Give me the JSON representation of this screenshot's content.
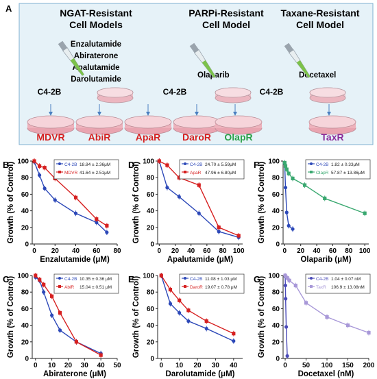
{
  "panel_A": {
    "letter": "A",
    "groups": [
      {
        "title": [
          "NGAT-Resistant",
          "Cell Models"
        ],
        "drugs": [
          "Enzalutamide",
          "Abiraterone",
          "Apalutamide",
          "Darolutamide"
        ],
        "parent": "C4-2B",
        "dishes": [
          {
            "label": "MDVR",
            "color": "#d62020"
          },
          {
            "label": "AbiR",
            "color": "#d62020"
          },
          {
            "label": "ApaR",
            "color": "#d62020"
          },
          {
            "label": "DaroR",
            "color": "#d62020"
          }
        ]
      },
      {
        "title": [
          "PARPi-Resistant",
          "Cell Model"
        ],
        "drugs": [
          "Olaparib"
        ],
        "parent": "C4-2B",
        "dishes": [
          {
            "label": "OlapR",
            "color": "#2aa048"
          }
        ]
      },
      {
        "title": [
          "Taxane-Resistant",
          "Cell Model"
        ],
        "drugs": [
          "Docetaxel"
        ],
        "parent": "C4-2B",
        "dishes": [
          {
            "label": "TaxR",
            "color": "#8a2c9a"
          }
        ]
      }
    ]
  },
  "chart_data": [
    {
      "panel": "B",
      "type": "line",
      "xlabel": "Enzalutamide (μM)",
      "ylabel": "Growth (% of Control)",
      "xlim": [
        -2,
        80
      ],
      "ylim": [
        0,
        100
      ],
      "xticks": [
        0,
        20,
        40,
        60,
        80
      ],
      "yticks": [
        0,
        20,
        40,
        60,
        80,
        100
      ],
      "series": [
        {
          "name": "C4-2B",
          "ic50": "18.84 ± 2.36μM",
          "color": "#2c48b8",
          "x": [
            0,
            5,
            10,
            20,
            40,
            60,
            70
          ],
          "y": [
            99,
            83,
            67,
            53,
            37,
            26,
            14
          ]
        },
        {
          "name": "MDVR",
          "ic50": "41.64 ± 2.51μM",
          "color": "#d62020",
          "x": [
            0,
            5,
            10,
            20,
            40,
            60,
            70
          ],
          "y": [
            100,
            94,
            92,
            79,
            56,
            30,
            22
          ]
        }
      ]
    },
    {
      "panel": "D",
      "type": "line",
      "xlabel": "Apalutamide (μM)",
      "ylabel": "Growth (% of Control)",
      "xlim": [
        -2,
        105
      ],
      "ylim": [
        0,
        100
      ],
      "xticks": [
        0,
        20,
        40,
        60,
        80,
        100
      ],
      "yticks": [
        0,
        20,
        40,
        60,
        80,
        100
      ],
      "series": [
        {
          "name": "C4-2B",
          "ic50": "24.70 ± 5.59μM",
          "color": "#2c48b8",
          "x": [
            0,
            10,
            25,
            50,
            75,
            100
          ],
          "y": [
            100,
            68,
            57,
            37,
            15,
            8
          ]
        },
        {
          "name": "ApaR",
          "ic50": "47.96 ± 6.80μM",
          "color": "#d62020",
          "x": [
            0,
            10,
            25,
            50,
            75,
            100
          ],
          "y": [
            100,
            95,
            80,
            71,
            20,
            10
          ]
        }
      ]
    },
    {
      "panel": "F",
      "type": "line",
      "xlabel": "Olaparib (μM)",
      "ylabel": "Growth (% of Control)",
      "xlim": [
        -2,
        105
      ],
      "ylim": [
        0,
        100
      ],
      "xticks": [
        0,
        20,
        40,
        60,
        80,
        100
      ],
      "yticks": [
        0,
        20,
        40,
        60,
        80,
        100
      ],
      "series": [
        {
          "name": "C4-2B",
          "ic50": "1.82 ± 0.33μM",
          "color": "#2c48b8",
          "x": [
            0,
            1,
            2.5,
            5,
            10
          ],
          "y": [
            97,
            68,
            38,
            22,
            18
          ]
        },
        {
          "name": "OlapR",
          "ic50": "57.87 ± 13.86μM",
          "color": "#3aa870",
          "x": [
            0,
            1,
            2.5,
            5,
            10,
            25,
            50,
            100
          ],
          "y": [
            98,
            94,
            90,
            85,
            79,
            71,
            55,
            37
          ]
        }
      ]
    },
    {
      "panel": "C",
      "type": "line",
      "xlabel": "Abiraterone (μM)",
      "ylabel": "Growth (% of Control)",
      "xlim": [
        -2,
        50
      ],
      "ylim": [
        0,
        100
      ],
      "xticks": [
        0,
        10,
        20,
        30,
        40,
        50
      ],
      "yticks": [
        0,
        20,
        40,
        60,
        80,
        100
      ],
      "series": [
        {
          "name": "C4-2B",
          "ic50": "10.35 ± 0.36 μM",
          "color": "#2c48b8",
          "x": [
            0,
            2.5,
            5,
            10,
            15,
            25,
            40
          ],
          "y": [
            98,
            94,
            80,
            52,
            34,
            20,
            6
          ]
        },
        {
          "name": "AbiR",
          "ic50": "15.04 ± 0.51 μM",
          "color": "#d62020",
          "x": [
            0,
            2.5,
            5,
            10,
            15,
            25,
            40
          ],
          "y": [
            100,
            95,
            89,
            75,
            55,
            20,
            4
          ]
        }
      ]
    },
    {
      "panel": "E",
      "type": "line",
      "xlabel": "Darolutamide (μM)",
      "ylabel": "Growth (% of Control)",
      "xlim": [
        -2,
        45
      ],
      "ylim": [
        0,
        100
      ],
      "xticks": [
        0,
        10,
        20,
        30,
        40
      ],
      "yticks": [
        0,
        20,
        40,
        60,
        80,
        100
      ],
      "series": [
        {
          "name": "C4-2B",
          "ic50": "11.08 ± 1.03 μM",
          "color": "#2c48b8",
          "x": [
            0,
            5,
            10,
            15,
            25,
            40
          ],
          "y": [
            100,
            66,
            55,
            45,
            36,
            21
          ]
        },
        {
          "name": "DaroR",
          "ic50": "19.07 ± 0.78 μM",
          "color": "#d62020",
          "x": [
            0,
            5,
            10,
            15,
            25,
            40
          ],
          "y": [
            100,
            83,
            70,
            58,
            45,
            30
          ]
        }
      ]
    },
    {
      "panel": "G",
      "type": "line",
      "xlabel": "Docetaxel (nM)",
      "ylabel": "Growth (% of Control)",
      "xlim": [
        -5,
        200
      ],
      "ylim": [
        0,
        100
      ],
      "xticks": [
        0,
        50,
        100,
        150,
        200
      ],
      "yticks": [
        0,
        20,
        40,
        60,
        80,
        100
      ],
      "series": [
        {
          "name": "C4-2B",
          "ic50": "1.04 ± 0.07 nM",
          "color": "#4a4ab8",
          "x": [
            0,
            0.5,
            1,
            2.5,
            5
          ],
          "y": [
            99,
            88,
            72,
            38,
            3
          ]
        },
        {
          "name": "TaxR",
          "ic50": "106.9 ± 13.08nM",
          "color": "#a898d8",
          "x": [
            0,
            5,
            10,
            25,
            50,
            100,
            150,
            200
          ],
          "y": [
            100,
            97,
            94,
            88,
            67,
            50,
            40,
            31
          ]
        }
      ]
    }
  ]
}
